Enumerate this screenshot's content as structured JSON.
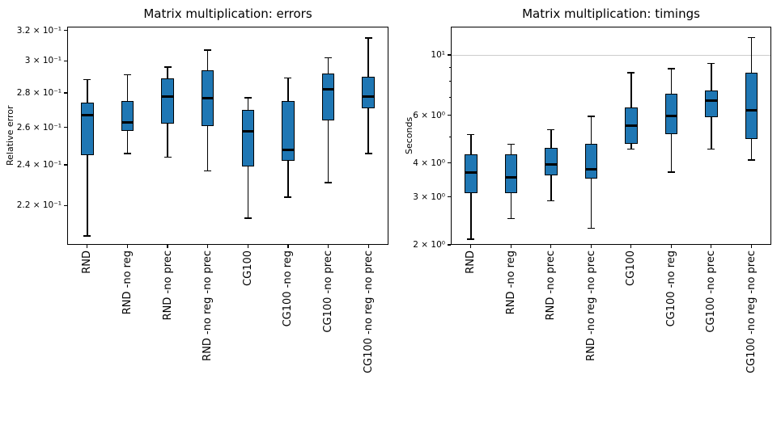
{
  "figure": {
    "background": "#ffffff",
    "box_fill_color": "#1f77b4",
    "box_edge_color": "#000000",
    "median_color": "#000000",
    "grid_color": "#cccccc",
    "text_color": "#000000"
  },
  "chart_data": [
    {
      "type": "boxplot",
      "title": "Matrix multiplication: errors",
      "ylabel": "Relative error",
      "yscale": "log",
      "ylim": [
        0.2022,
        0.3227
      ],
      "grid": "major-decades-only (none in range)",
      "gridlines": [],
      "yticks": [
        {
          "v": 0.32,
          "label": "3.2 × 10⁻¹"
        },
        {
          "v": 0.3,
          "label": "3 × 10⁻¹"
        },
        {
          "v": 0.28,
          "label": "2.8 × 10⁻¹"
        },
        {
          "v": 0.26,
          "label": "2.6 × 10⁻¹"
        },
        {
          "v": 0.24,
          "label": "2.4 × 10⁻¹"
        },
        {
          "v": 0.22,
          "label": "2.2 × 10⁻¹"
        }
      ],
      "minor_yticks": [],
      "categories": [
        "RND",
        "RND -no reg",
        "RND -no prec",
        "RND -no reg -no prec",
        "CG100",
        "CG100 -no reg",
        "CG100 -no prec",
        "CG100 -no reg -no prec"
      ],
      "series": [
        {
          "label": "RND",
          "whislo": 0.206,
          "q1": 0.245,
          "med": 0.267,
          "q3": 0.274,
          "whishi": 0.288
        },
        {
          "label": "RND -no reg",
          "whislo": 0.246,
          "q1": 0.258,
          "med": 0.263,
          "q3": 0.275,
          "whishi": 0.291
        },
        {
          "label": "RND -no prec",
          "whislo": 0.244,
          "q1": 0.262,
          "med": 0.278,
          "q3": 0.289,
          "whishi": 0.296
        },
        {
          "label": "RND -no reg -no prec",
          "whislo": 0.237,
          "q1": 0.261,
          "med": 0.277,
          "q3": 0.294,
          "whishi": 0.307
        },
        {
          "label": "CG100",
          "whislo": 0.214,
          "q1": 0.239,
          "med": 0.258,
          "q3": 0.27,
          "whishi": 0.277
        },
        {
          "label": "CG100 -no reg",
          "whislo": 0.224,
          "q1": 0.242,
          "med": 0.248,
          "q3": 0.275,
          "whishi": 0.289
        },
        {
          "label": "CG100 -no prec",
          "whislo": 0.231,
          "q1": 0.264,
          "med": 0.282,
          "q3": 0.292,
          "whishi": 0.302
        },
        {
          "label": "CG100 -no reg -no prec",
          "whislo": 0.246,
          "q1": 0.271,
          "med": 0.278,
          "q3": 0.29,
          "whishi": 0.315
        }
      ]
    },
    {
      "type": "boxplot",
      "title": "Matrix multiplication: timings",
      "ylabel": "Seconds",
      "yscale": "log",
      "ylim": [
        2.0,
        12.71
      ],
      "grid": "major-decades-only",
      "gridlines": [
        10
      ],
      "yticks": [
        {
          "v": 10,
          "label": "10¹"
        },
        {
          "v": 6,
          "label": "6 × 10⁰"
        },
        {
          "v": 4,
          "label": "4 × 10⁰"
        },
        {
          "v": 3,
          "label": "3 × 10⁰"
        },
        {
          "v": 2,
          "label": "2 × 10⁰"
        }
      ],
      "minor_yticks": [
        9,
        8,
        7,
        5
      ],
      "categories": [
        "RND",
        "RND -no reg",
        "RND -no prec",
        "RND -no reg -no prec",
        "CG100",
        "CG100 -no reg",
        "CG100 -no prec",
        "CG100 -no reg -no prec"
      ],
      "series": [
        {
          "label": "RND",
          "whislo": 2.1,
          "q1": 3.1,
          "med": 3.7,
          "q3": 4.3,
          "whishi": 5.1
        },
        {
          "label": "RND -no reg",
          "whislo": 2.5,
          "q1": 3.1,
          "med": 3.55,
          "q3": 4.3,
          "whishi": 4.7
        },
        {
          "label": "RND -no prec",
          "whislo": 2.9,
          "q1": 3.6,
          "med": 3.95,
          "q3": 4.55,
          "whishi": 5.3
        },
        {
          "label": "RND -no reg -no prec",
          "whislo": 2.3,
          "q1": 3.5,
          "med": 3.8,
          "q3": 4.7,
          "whishi": 5.95
        },
        {
          "label": "CG100",
          "whislo": 4.5,
          "q1": 4.7,
          "med": 5.5,
          "q3": 6.4,
          "whishi": 8.6
        },
        {
          "label": "CG100 -no reg",
          "whislo": 3.7,
          "q1": 5.1,
          "med": 5.95,
          "q3": 7.2,
          "whishi": 8.9
        },
        {
          "label": "CG100 -no prec",
          "whislo": 4.5,
          "q1": 5.9,
          "med": 6.8,
          "q3": 7.4,
          "whishi": 9.3
        },
        {
          "label": "CG100 -no reg -no prec",
          "whislo": 4.1,
          "q1": 4.9,
          "med": 6.25,
          "q3": 8.6,
          "whishi": 11.6
        }
      ]
    }
  ]
}
